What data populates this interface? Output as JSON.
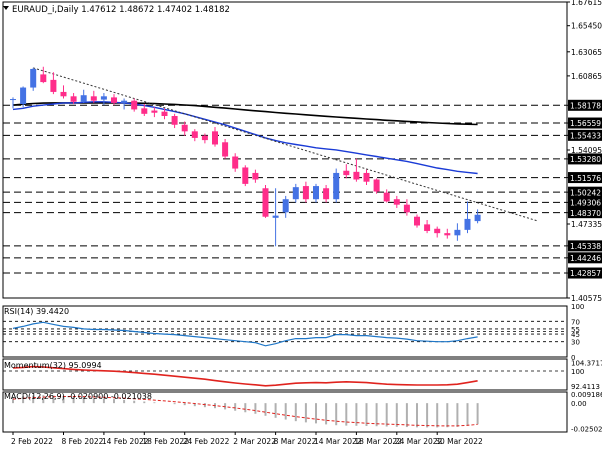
{
  "chart_data": {
    "type": "candlestick",
    "header": "EURAUD_i,Daily  1.47612 1.48672 1.47402 1.48182",
    "price_ticks": [
      "1.67615",
      "1.65450",
      "1.63065",
      "1.60865",
      "1.58178",
      "1.56559",
      "1.55433",
      "1.54095",
      "1.53280",
      "1.51576",
      "1.50242",
      "1.49306",
      "1.48370",
      "1.47335",
      "1.45338",
      "1.44246",
      "1.42857",
      "1.40575"
    ],
    "highlight_ticks": [
      "1.58178",
      "1.56559",
      "1.55433",
      "1.53280",
      "1.51576",
      "1.50242",
      "1.49306",
      "1.48370",
      "1.45338",
      "1.44246",
      "1.42857"
    ],
    "ylim": [
      1.40575,
      1.67615
    ],
    "candles": [
      {
        "o": 1.5875,
        "h": 1.589,
        "l": 1.579,
        "c": 1.587,
        "bull": true
      },
      {
        "o": 1.583,
        "h": 1.599,
        "l": 1.58,
        "c": 1.598,
        "bull": true
      },
      {
        "o": 1.598,
        "h": 1.616,
        "l": 1.595,
        "c": 1.615,
        "bull": true
      },
      {
        "o": 1.61,
        "h": 1.617,
        "l": 1.602,
        "c": 1.603,
        "bull": false
      },
      {
        "o": 1.605,
        "h": 1.612,
        "l": 1.592,
        "c": 1.594,
        "bull": false
      },
      {
        "o": 1.594,
        "h": 1.6,
        "l": 1.588,
        "c": 1.59,
        "bull": false
      },
      {
        "o": 1.59,
        "h": 1.593,
        "l": 1.583,
        "c": 1.585,
        "bull": false
      },
      {
        "o": 1.585,
        "h": 1.596,
        "l": 1.584,
        "c": 1.591,
        "bull": true
      },
      {
        "o": 1.59,
        "h": 1.595,
        "l": 1.584,
        "c": 1.586,
        "bull": false
      },
      {
        "o": 1.587,
        "h": 1.593,
        "l": 1.582,
        "c": 1.59,
        "bull": true
      },
      {
        "o": 1.589,
        "h": 1.592,
        "l": 1.582,
        "c": 1.584,
        "bull": false
      },
      {
        "o": 1.584,
        "h": 1.588,
        "l": 1.578,
        "c": 1.586,
        "bull": true
      },
      {
        "o": 1.586,
        "h": 1.588,
        "l": 1.576,
        "c": 1.578,
        "bull": false
      },
      {
        "o": 1.579,
        "h": 1.583,
        "l": 1.572,
        "c": 1.574,
        "bull": false
      },
      {
        "o": 1.577,
        "h": 1.58,
        "l": 1.571,
        "c": 1.575,
        "bull": false
      },
      {
        "o": 1.576,
        "h": 1.579,
        "l": 1.569,
        "c": 1.572,
        "bull": false
      },
      {
        "o": 1.572,
        "h": 1.574,
        "l": 1.561,
        "c": 1.564,
        "bull": false
      },
      {
        "o": 1.564,
        "h": 1.567,
        "l": 1.554,
        "c": 1.558,
        "bull": false
      },
      {
        "o": 1.558,
        "h": 1.56,
        "l": 1.549,
        "c": 1.552,
        "bull": false
      },
      {
        "o": 1.554,
        "h": 1.556,
        "l": 1.547,
        "c": 1.55,
        "bull": false
      },
      {
        "o": 1.558,
        "h": 1.562,
        "l": 1.544,
        "c": 1.546,
        "bull": false
      },
      {
        "o": 1.548,
        "h": 1.551,
        "l": 1.533,
        "c": 1.535,
        "bull": false
      },
      {
        "o": 1.535,
        "h": 1.538,
        "l": 1.521,
        "c": 1.524,
        "bull": false
      },
      {
        "o": 1.525,
        "h": 1.527,
        "l": 1.508,
        "c": 1.51,
        "bull": false
      },
      {
        "o": 1.52,
        "h": 1.523,
        "l": 1.511,
        "c": 1.514,
        "bull": false
      },
      {
        "o": 1.506,
        "h": 1.509,
        "l": 1.479,
        "c": 1.48,
        "bull": false
      },
      {
        "o": 1.479,
        "h": 1.506,
        "l": 1.453,
        "c": 1.481,
        "bull": true
      },
      {
        "o": 1.484,
        "h": 1.499,
        "l": 1.479,
        "c": 1.496,
        "bull": true
      },
      {
        "o": 1.496,
        "h": 1.51,
        "l": 1.493,
        "c": 1.507,
        "bull": true
      },
      {
        "o": 1.508,
        "h": 1.512,
        "l": 1.493,
        "c": 1.496,
        "bull": false
      },
      {
        "o": 1.496,
        "h": 1.51,
        "l": 1.493,
        "c": 1.508,
        "bull": true
      },
      {
        "o": 1.506,
        "h": 1.509,
        "l": 1.493,
        "c": 1.496,
        "bull": false
      },
      {
        "o": 1.496,
        "h": 1.524,
        "l": 1.493,
        "c": 1.52,
        "bull": true
      },
      {
        "o": 1.522,
        "h": 1.528,
        "l": 1.515,
        "c": 1.518,
        "bull": false
      },
      {
        "o": 1.521,
        "h": 1.533,
        "l": 1.512,
        "c": 1.514,
        "bull": false
      },
      {
        "o": 1.52,
        "h": 1.523,
        "l": 1.509,
        "c": 1.512,
        "bull": false
      },
      {
        "o": 1.514,
        "h": 1.515,
        "l": 1.501,
        "c": 1.503,
        "bull": false
      },
      {
        "o": 1.502,
        "h": 1.505,
        "l": 1.493,
        "c": 1.494,
        "bull": false
      },
      {
        "o": 1.496,
        "h": 1.499,
        "l": 1.488,
        "c": 1.491,
        "bull": false
      },
      {
        "o": 1.491,
        "h": 1.496,
        "l": 1.481,
        "c": 1.484,
        "bull": false
      },
      {
        "o": 1.48,
        "h": 1.482,
        "l": 1.47,
        "c": 1.472,
        "bull": false
      },
      {
        "o": 1.473,
        "h": 1.477,
        "l": 1.465,
        "c": 1.467,
        "bull": false
      },
      {
        "o": 1.469,
        "h": 1.471,
        "l": 1.461,
        "c": 1.465,
        "bull": false
      },
      {
        "o": 1.465,
        "h": 1.469,
        "l": 1.46,
        "c": 1.463,
        "bull": false
      },
      {
        "o": 1.463,
        "h": 1.474,
        "l": 1.458,
        "c": 1.468,
        "bull": true
      },
      {
        "o": 1.468,
        "h": 1.494,
        "l": 1.465,
        "c": 1.478,
        "bull": true
      },
      {
        "o": 1.476,
        "h": 1.4867,
        "l": 1.474,
        "c": 1.4818,
        "bull": true
      }
    ],
    "ma_fast": [
      1.578,
      1.579,
      1.581,
      1.582,
      1.583,
      1.584,
      1.584,
      1.5845,
      1.585,
      1.585,
      1.5845,
      1.584,
      1.583,
      1.5815,
      1.58,
      1.578,
      1.576,
      1.574,
      1.5715,
      1.569,
      1.5665,
      1.564,
      1.561,
      1.558,
      1.555,
      1.552,
      1.5495,
      1.5475,
      1.546,
      1.5445,
      1.543,
      1.542,
      1.541,
      1.5395,
      1.538,
      1.5365,
      1.535,
      1.5335,
      1.532,
      1.5305,
      1.5285,
      1.5265,
      1.5245,
      1.523,
      1.5215,
      1.5205,
      1.5195
    ],
    "ma_slow": [
      1.582,
      1.5828,
      1.5834,
      1.5838,
      1.584,
      1.584,
      1.584,
      1.584,
      1.584,
      1.584,
      1.584,
      1.5839,
      1.5838,
      1.5836,
      1.5834,
      1.583,
      1.5826,
      1.5821,
      1.5815,
      1.5808,
      1.58,
      1.5792,
      1.5784,
      1.5776,
      1.5768,
      1.576,
      1.5752,
      1.5745,
      1.5738,
      1.5731,
      1.5724,
      1.5717,
      1.5711,
      1.5705,
      1.5699,
      1.5693,
      1.5687,
      1.5681,
      1.5676,
      1.5671,
      1.5666,
      1.5661,
      1.5656,
      1.5652,
      1.5648,
      1.5645,
      1.5642
    ],
    "trendline": {
      "from": [
        2,
        1.616
      ],
      "to": [
        52,
        1.476
      ]
    },
    "rsi": {
      "label": "RSI(14) 39.4420",
      "ticks": [
        "100",
        "70",
        "55",
        "45",
        "30",
        "0"
      ],
      "levels": [
        70,
        55,
        50,
        45,
        30
      ],
      "ylim": [
        0,
        100
      ],
      "values": [
        56,
        60,
        65,
        68,
        64,
        60,
        58,
        55,
        54,
        54,
        53,
        52,
        50,
        48,
        46,
        45,
        44,
        42,
        40,
        38,
        36,
        34,
        32,
        30,
        28,
        22,
        26,
        32,
        36,
        36,
        38,
        38,
        44,
        44,
        42,
        42,
        40,
        38,
        37,
        35,
        32,
        31,
        30,
        30,
        32,
        36,
        39.442
      ]
    },
    "momentum": {
      "label": "Momentum(32) 95.0994",
      "ticks": [
        "104.3717",
        "100",
        "92.4113"
      ],
      "level": 100,
      "ylim": [
        90.5,
        106
      ],
      "values": [
        101.5,
        101.8,
        102.2,
        102.0,
        101.6,
        101.2,
        100.8,
        100.5,
        100.3,
        100.1,
        99.9,
        99.6,
        99.2,
        98.8,
        98.4,
        97.9,
        97.4,
        96.9,
        96.4,
        95.9,
        95.2,
        94.6,
        94.0,
        93.5,
        93.1,
        92.6,
        92.9,
        93.4,
        93.9,
        94.1,
        94.2,
        94.1,
        94.4,
        94.6,
        94.4,
        94.2,
        93.8,
        93.4,
        93.2,
        93.1,
        93.0,
        93.0,
        93.0,
        93.1,
        93.4,
        94.2,
        95.0994
      ]
    },
    "macd": {
      "label": "MACD(12,26,9) -0.020900 -0.021038",
      "ticks": [
        "0.009186",
        "0.00",
        "-0.025025"
      ],
      "ylim": [
        -0.0285,
        0.011
      ],
      "hist": [
        0.006,
        0.0068,
        0.0074,
        0.0078,
        0.0076,
        0.0072,
        0.0066,
        0.006,
        0.0052,
        0.0046,
        0.004,
        0.0032,
        0.0024,
        0.0016,
        0.0008,
        0.0,
        -0.001,
        -0.002,
        -0.003,
        -0.004,
        -0.005,
        -0.0062,
        -0.0075,
        -0.009,
        -0.0105,
        -0.0125,
        -0.0145,
        -0.0162,
        -0.0178,
        -0.019,
        -0.02,
        -0.021,
        -0.0218,
        -0.0222,
        -0.0224,
        -0.0226,
        -0.0228,
        -0.0231,
        -0.0234,
        -0.0236,
        -0.0239,
        -0.024,
        -0.024,
        -0.0238,
        -0.0234,
        -0.0224,
        -0.0209
      ],
      "signal": [
        0.004,
        0.0048,
        0.0055,
        0.006,
        0.0064,
        0.0066,
        0.0066,
        0.0065,
        0.0062,
        0.0058,
        0.0054,
        0.0049,
        0.0043,
        0.0037,
        0.003,
        0.0022,
        0.0014,
        0.0005,
        -0.0004,
        -0.0014,
        -0.0024,
        -0.0035,
        -0.0047,
        -0.006,
        -0.0074,
        -0.0089,
        -0.0104,
        -0.0119,
        -0.0133,
        -0.0146,
        -0.0158,
        -0.0169,
        -0.0178,
        -0.0186,
        -0.0192,
        -0.0198,
        -0.0203,
        -0.0207,
        -0.0211,
        -0.0215,
        -0.0219,
        -0.0222,
        -0.0224,
        -0.0225,
        -0.0225,
        -0.0219,
        -0.021
      ]
    },
    "x_labels": [
      {
        "text": "2 Feb 2022",
        "i": 0
      },
      {
        "text": "8 Feb 2022",
        "i": 5
      },
      {
        "text": "14 Feb 2022",
        "i": 9
      },
      {
        "text": "18 Feb 2022",
        "i": 13
      },
      {
        "text": "24 Feb 2022",
        "i": 17
      },
      {
        "text": "2 Mar 2022",
        "i": 22
      },
      {
        "text": "8 Mar 2022",
        "i": 26
      },
      {
        "text": "14 Mar 2022",
        "i": 30
      },
      {
        "text": "18 Mar 2022",
        "i": 34
      },
      {
        "text": "24 Mar 2022",
        "i": 38
      },
      {
        "text": "30 Mar 2022",
        "i": 42
      }
    ],
    "colors": {
      "bull": "#4472e4",
      "bear": "#ff2d8a",
      "ma_fast": "#1a3bd6",
      "ma_slow": "#000000",
      "rsi": "#1f77c8",
      "momentum": "#e0231e",
      "macd_hist": "#b0b0b0",
      "macd_signal": "#e0231e",
      "highlight_bg": "#000000",
      "highlight_fg": "#ffffff"
    }
  }
}
